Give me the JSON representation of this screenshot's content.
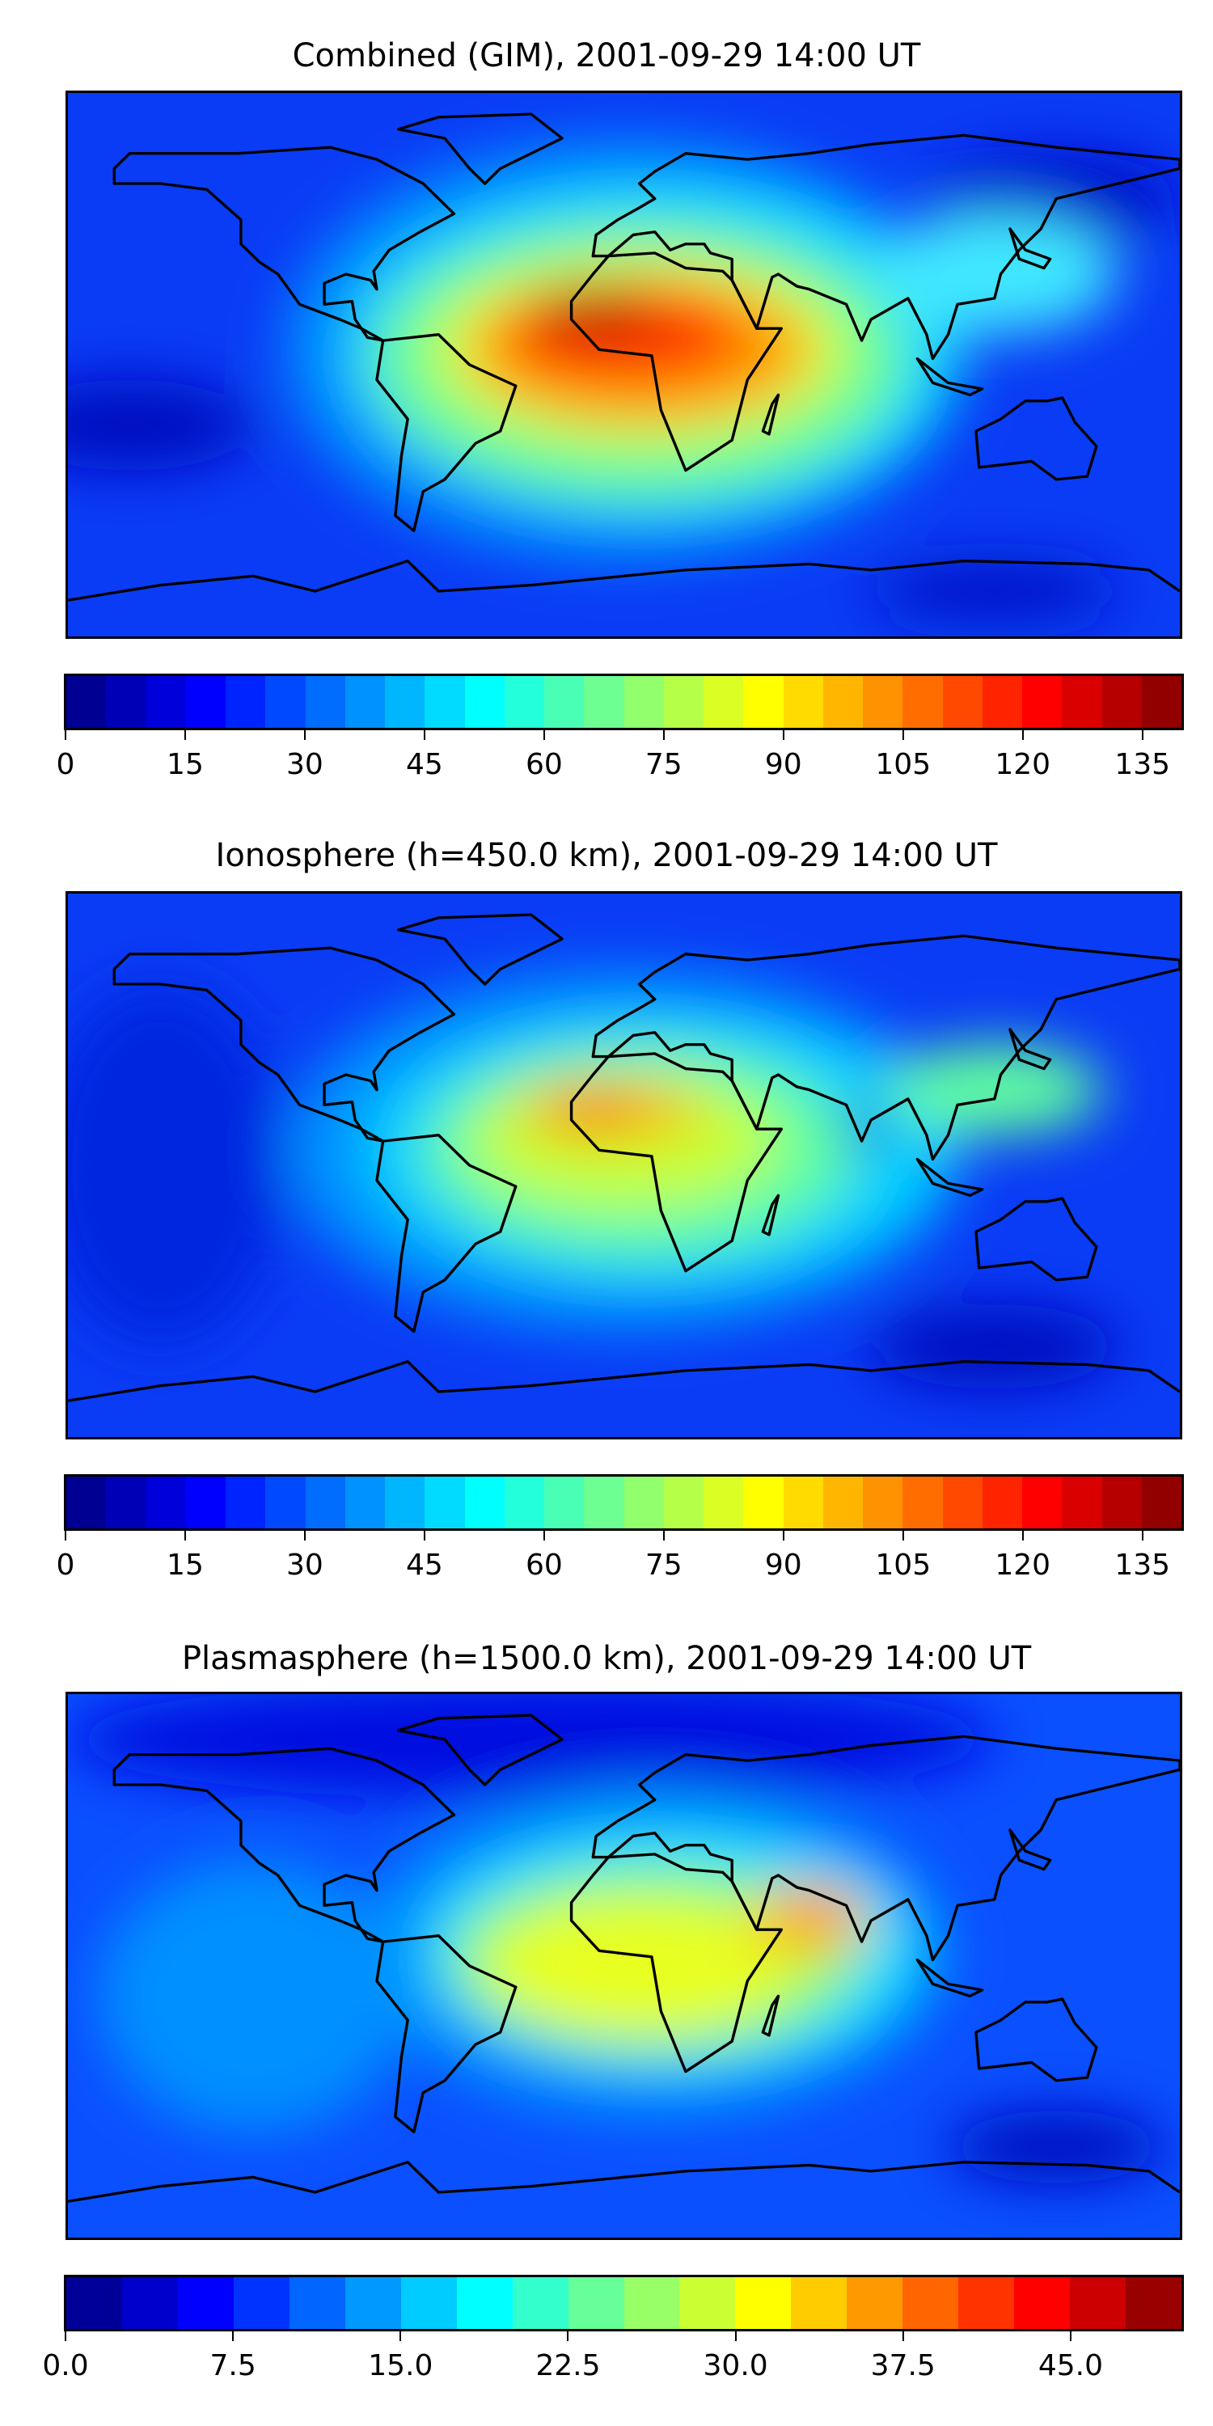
{
  "chart_data": [
    {
      "type": "heatmap",
      "title": "Combined (GIM), 2001-09-29 14:00 UT",
      "colormap": "jet",
      "levels": {
        "min": 0,
        "max": 140,
        "step": 5
      },
      "colorbar_ticks": [
        "0",
        "15",
        "30",
        "45",
        "60",
        "75",
        "90",
        "105",
        "120",
        "135"
      ],
      "tick_values": [
        0,
        15,
        30,
        45,
        60,
        75,
        90,
        105,
        120,
        135
      ],
      "peak": {
        "lon": -10,
        "lat": 5,
        "value": 135
      },
      "grid": false
    },
    {
      "type": "heatmap",
      "title": "Ionosphere  (h=450.0 km), 2001-09-29 14:00 UT",
      "colormap": "jet",
      "levels": {
        "min": 0,
        "max": 140,
        "step": 5
      },
      "colorbar_ticks": [
        "0",
        "15",
        "30",
        "45",
        "60",
        "75",
        "90",
        "105",
        "120",
        "135"
      ],
      "tick_values": [
        0,
        15,
        30,
        45,
        60,
        75,
        90,
        105,
        120,
        135
      ],
      "peak": {
        "lon": -10,
        "lat": 12,
        "value": 100
      },
      "grid": false
    },
    {
      "type": "heatmap",
      "title": "Plasmasphere (h=1500.0 km), 2001-09-29 14:00 UT",
      "colormap": "jet",
      "levels": {
        "min": 0,
        "max": 50,
        "step": 2.5
      },
      "colorbar_ticks": [
        "0.0",
        "7.5",
        "15.0",
        "22.5",
        "30.0",
        "37.5",
        "45.0"
      ],
      "tick_values": [
        0,
        7.5,
        15,
        22.5,
        30,
        37.5,
        45
      ],
      "peak": {
        "lon": 60,
        "lat": 15,
        "value": 37.5
      },
      "grid": false
    }
  ]
}
